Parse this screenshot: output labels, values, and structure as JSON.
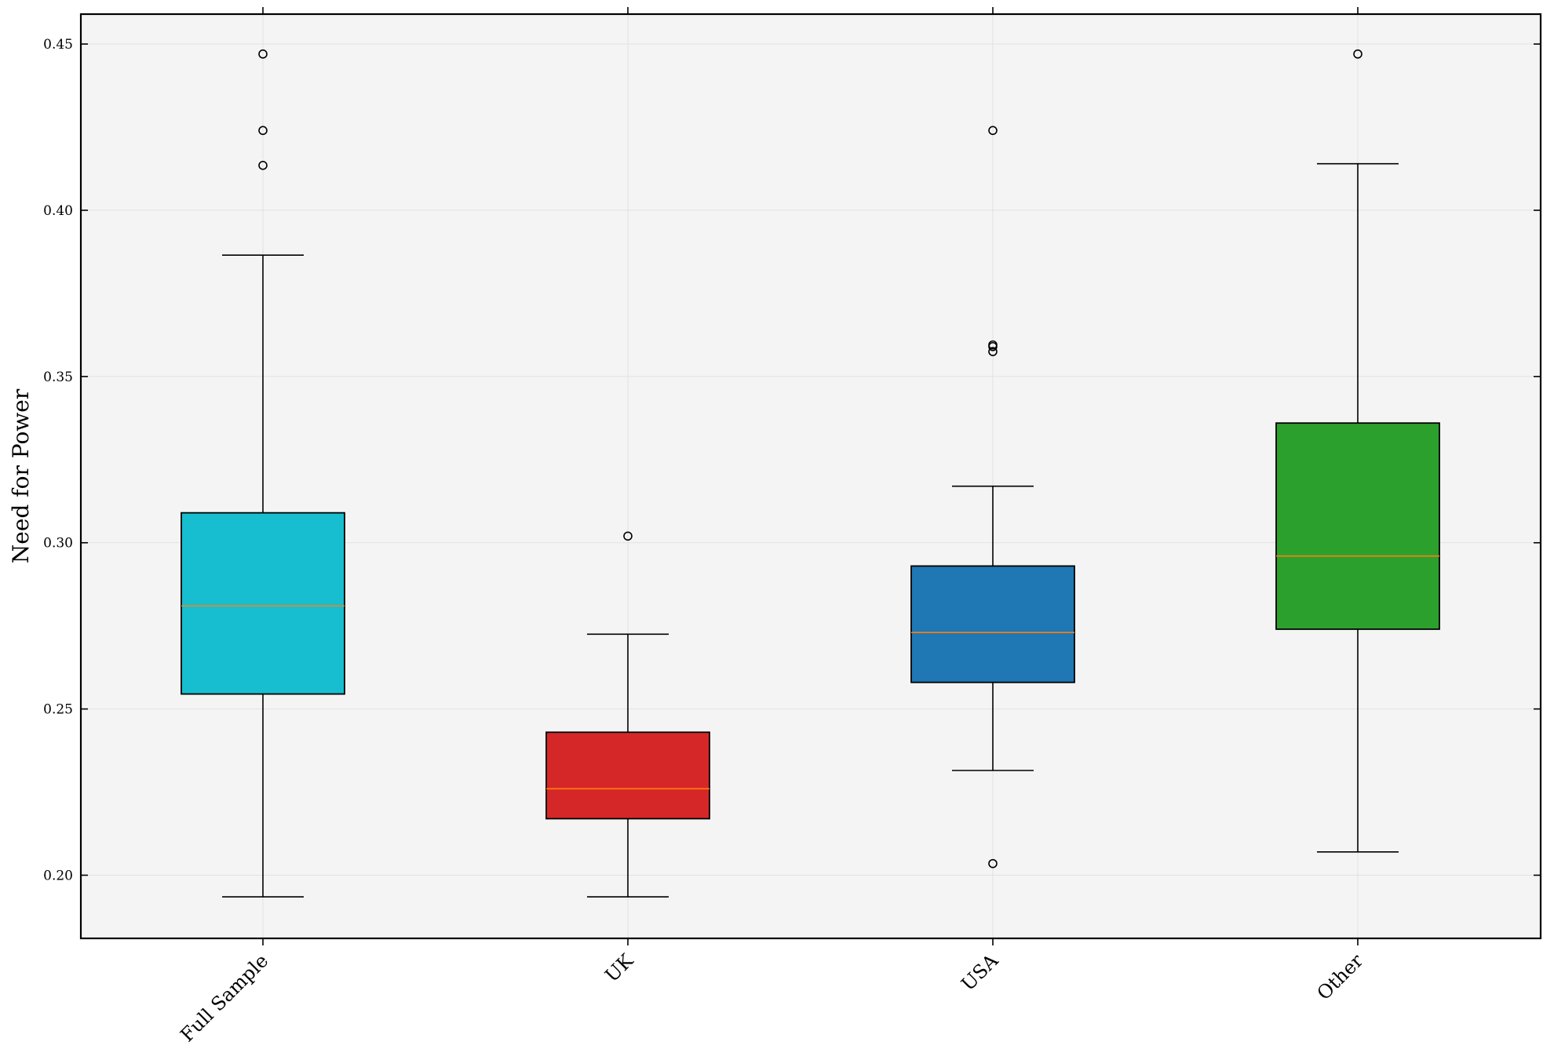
{
  "chart_data": {
    "type": "box",
    "title": "",
    "xlabel": "",
    "ylabel": "Need for Power",
    "ylim": [
      0.181,
      0.459
    ],
    "yticks": [
      0.2,
      0.25,
      0.3,
      0.35,
      0.4,
      0.45
    ],
    "ytick_labels": [
      "0.20",
      "0.25",
      "0.30",
      "0.35",
      "0.40",
      "0.45"
    ],
    "grid": true,
    "categories": [
      "Full Sample",
      "UK",
      "USA",
      "Other"
    ],
    "boxes": [
      {
        "name": "Full Sample",
        "color": "#17becf",
        "whisker_low": 0.1935,
        "q1": 0.2545,
        "median": 0.281,
        "q3": 0.309,
        "whisker_high": 0.3865,
        "outliers": [
          0.4135,
          0.424,
          0.447
        ]
      },
      {
        "name": "UK",
        "color": "#d62728",
        "whisker_low": 0.1935,
        "q1": 0.217,
        "median": 0.226,
        "q3": 0.243,
        "whisker_high": 0.2725,
        "outliers": [
          0.302
        ]
      },
      {
        "name": "USA",
        "color": "#1f77b4",
        "whisker_low": 0.2315,
        "q1": 0.258,
        "median": 0.273,
        "q3": 0.293,
        "whisker_high": 0.317,
        "outliers": [
          0.2035,
          0.3575,
          0.359,
          0.3595,
          0.424
        ]
      },
      {
        "name": "Other",
        "color": "#2ca02c",
        "whisker_low": 0.207,
        "q1": 0.274,
        "median": 0.296,
        "q3": 0.336,
        "whisker_high": 0.414,
        "outliers": [
          0.447
        ]
      }
    ],
    "median_color": "#ff7f0e",
    "plot_background": "#f4f4f4"
  }
}
